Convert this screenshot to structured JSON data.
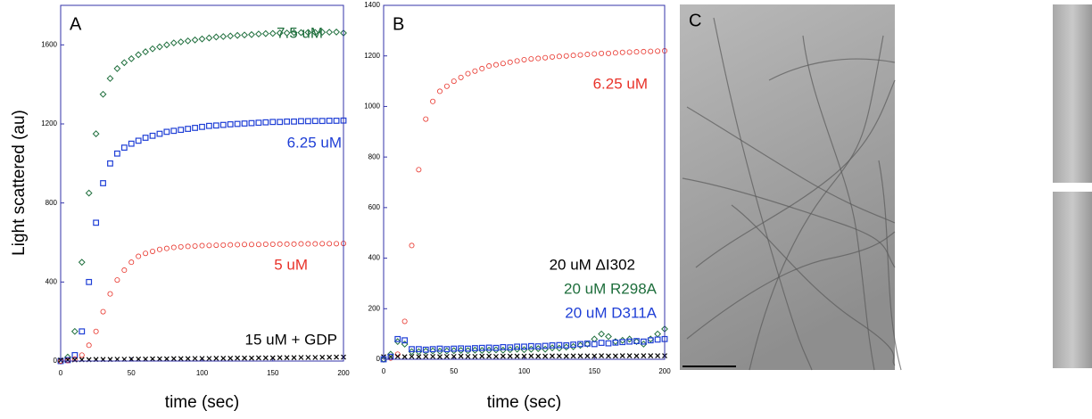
{
  "chart_data": [
    {
      "type": "scatter",
      "panel": "A",
      "x_label": "time (sec)",
      "y_label": "Light scattered (au)",
      "xlim": [
        0,
        200
      ],
      "xticks": [
        0,
        50,
        100,
        150,
        200
      ],
      "ylim": [
        0,
        1800
      ],
      "yticks": [
        0,
        400,
        800,
        1200,
        1600
      ],
      "x": [
        0,
        5,
        10,
        15,
        20,
        25,
        30,
        35,
        40,
        45,
        50,
        55,
        60,
        65,
        70,
        75,
        80,
        85,
        90,
        95,
        100,
        105,
        110,
        115,
        120,
        125,
        130,
        135,
        140,
        145,
        150,
        155,
        160,
        165,
        170,
        175,
        180,
        185,
        190,
        195,
        200
      ],
      "series": [
        {
          "name": "7.5 uM",
          "color": "#1e6e3c",
          "marker": "diamond",
          "values": [
            0,
            20,
            150,
            500,
            850,
            1150,
            1350,
            1430,
            1480,
            1510,
            1530,
            1550,
            1565,
            1580,
            1590,
            1600,
            1610,
            1615,
            1620,
            1625,
            1630,
            1635,
            1640,
            1642,
            1645,
            1648,
            1650,
            1652,
            1655,
            1657,
            1658,
            1660,
            1660,
            1662,
            1662,
            1663,
            1663,
            1664,
            1664,
            1665,
            1660
          ]
        },
        {
          "name": "6.25 uM",
          "color": "#1f3fd6",
          "marker": "square",
          "values": [
            0,
            5,
            30,
            150,
            400,
            700,
            900,
            1000,
            1050,
            1080,
            1100,
            1115,
            1130,
            1140,
            1150,
            1160,
            1165,
            1170,
            1175,
            1180,
            1185,
            1190,
            1192,
            1195,
            1198,
            1200,
            1202,
            1204,
            1206,
            1208,
            1210,
            1210,
            1212,
            1212,
            1214,
            1214,
            1215,
            1215,
            1216,
            1216,
            1217
          ]
        },
        {
          "name": "5 uM",
          "color": "#e8332a",
          "marker": "circle",
          "values": [
            0,
            2,
            10,
            30,
            80,
            150,
            250,
            340,
            410,
            460,
            500,
            530,
            545,
            555,
            565,
            570,
            575,
            578,
            580,
            582,
            584,
            585,
            586,
            587,
            588,
            589,
            590,
            590,
            590,
            591,
            591,
            592,
            592,
            592,
            593,
            593,
            593,
            594,
            594,
            594,
            595
          ]
        },
        {
          "name": "15 uM + GDP",
          "color": "#000000",
          "marker": "x",
          "values": [
            5,
            6,
            6,
            7,
            7,
            8,
            8,
            8,
            9,
            9,
            10,
            10,
            10,
            11,
            11,
            11,
            12,
            12,
            12,
            13,
            13,
            13,
            14,
            14,
            14,
            15,
            15,
            15,
            16,
            16,
            16,
            17,
            17,
            17,
            18,
            18,
            18,
            19,
            19,
            20,
            20
          ]
        }
      ]
    },
    {
      "type": "scatter",
      "panel": "B",
      "x_label": "time (sec)",
      "xlim": [
        0,
        200
      ],
      "xticks": [
        0,
        50,
        100,
        150,
        200
      ],
      "ylim": [
        0,
        1400
      ],
      "yticks": [
        0,
        200,
        400,
        600,
        800,
        1000,
        1200,
        1400
      ],
      "x": [
        0,
        5,
        10,
        15,
        20,
        25,
        30,
        35,
        40,
        45,
        50,
        55,
        60,
        65,
        70,
        75,
        80,
        85,
        90,
        95,
        100,
        105,
        110,
        115,
        120,
        125,
        130,
        135,
        140,
        145,
        150,
        155,
        160,
        165,
        170,
        175,
        180,
        185,
        190,
        195,
        200
      ],
      "series": [
        {
          "name": "6.25 uM",
          "color": "#e8332a",
          "marker": "circle",
          "values": [
            0,
            5,
            20,
            150,
            450,
            750,
            950,
            1020,
            1060,
            1080,
            1100,
            1115,
            1130,
            1140,
            1150,
            1160,
            1165,
            1170,
            1175,
            1180,
            1185,
            1188,
            1190,
            1193,
            1196,
            1198,
            1200,
            1202,
            1204,
            1206,
            1208,
            1210,
            1210,
            1212,
            1214,
            1215,
            1216,
            1217,
            1218,
            1219,
            1220
          ]
        },
        {
          "name": "20 uM ΔI302",
          "color": "#000000",
          "marker": "x",
          "values": [
            10,
            10,
            11,
            10,
            11,
            10,
            11,
            11,
            10,
            11,
            11,
            12,
            11,
            11,
            12,
            12,
            11,
            12,
            12,
            12,
            12,
            13,
            12,
            12,
            13,
            13,
            12,
            13,
            13,
            13,
            13,
            14,
            13,
            13,
            14,
            14,
            13,
            14,
            14,
            14,
            14
          ]
        },
        {
          "name": "20 uM R298A",
          "color": "#1e6e3c",
          "marker": "diamond",
          "values": [
            0,
            20,
            70,
            60,
            30,
            30,
            32,
            33,
            32,
            33,
            34,
            35,
            34,
            36,
            35,
            36,
            37,
            36,
            38,
            40,
            38,
            40,
            42,
            40,
            45,
            44,
            48,
            50,
            55,
            60,
            80,
            100,
            90,
            70,
            75,
            80,
            70,
            60,
            80,
            100,
            120
          ]
        },
        {
          "name": "20 uM D311A",
          "color": "#1f3fd6",
          "marker": "square",
          "values": [
            0,
            10,
            80,
            75,
            40,
            40,
            38,
            40,
            42,
            40,
            42,
            43,
            42,
            44,
            45,
            46,
            45,
            48,
            47,
            50,
            50,
            52,
            51,
            53,
            55,
            56,
            55,
            58,
            60,
            62,
            60,
            65,
            63,
            66,
            68,
            70,
            72,
            70,
            75,
            78,
            80
          ]
        }
      ]
    }
  ],
  "micrograph": {
    "panel": "C"
  }
}
